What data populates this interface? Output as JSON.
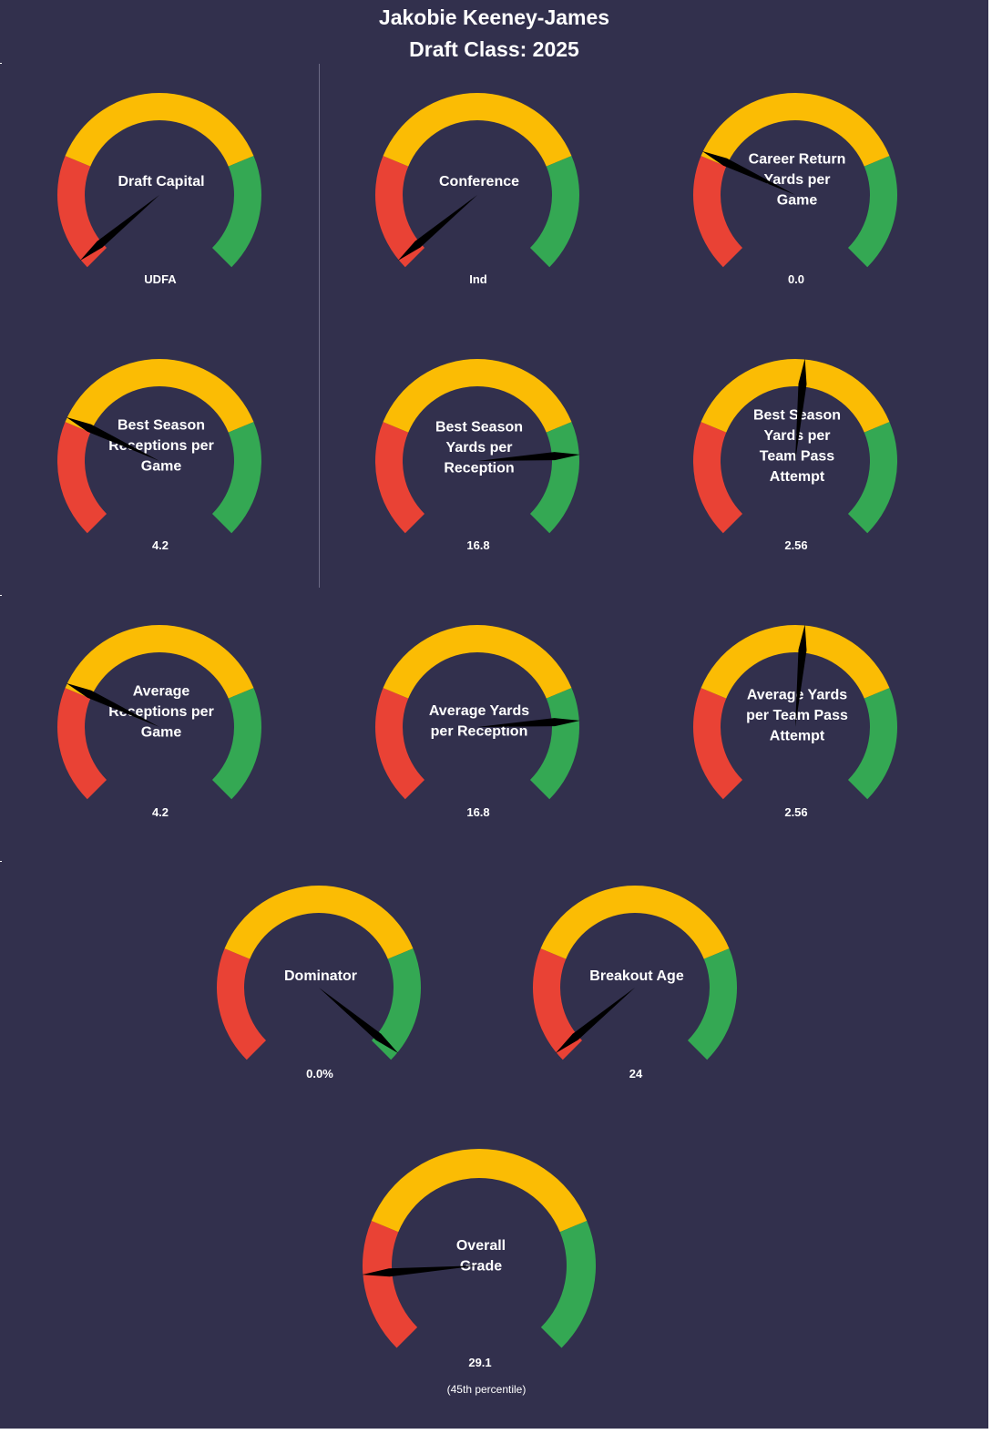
{
  "header": {
    "title_line1": "Jakobie Keeney-James",
    "title_line2": "Draft Class: 2025"
  },
  "colors": {
    "background": "#32304d",
    "low": "#e94235",
    "mid": "#fbbc04",
    "high": "#34a853",
    "needle": "#000000",
    "text": "#ffffff"
  },
  "chart_data": {
    "type": "gauge",
    "gauges": [
      {
        "label": "Draft Capital",
        "value_text": "UDFA",
        "needle_pct": 2
      },
      {
        "label": "Conference",
        "value_text": "Ind",
        "needle_pct": 2
      },
      {
        "label": "Career Return Yards per Game",
        "value_text": "0.0",
        "needle_pct": 26
      },
      {
        "label": "Best Season Receptions per Game",
        "value_text": "4.2",
        "needle_pct": 26
      },
      {
        "label": "Best Season Yards per Reception",
        "value_text": "16.8",
        "needle_pct": 82
      },
      {
        "label": "Best Season Yards per Team Pass Attempt",
        "value_text": "2.56",
        "needle_pct": 52
      },
      {
        "label": "Average Receptions per Game",
        "value_text": "4.2",
        "needle_pct": 26
      },
      {
        "label": "Average Yards per Reception",
        "value_text": "16.8",
        "needle_pct": 82
      },
      {
        "label": "Average Yards per Team Pass Attempt",
        "value_text": "2.56",
        "needle_pct": 52
      },
      {
        "label": "Dominator",
        "value_text": "0.0%",
        "needle_pct": 98
      },
      {
        "label": "Breakout Age",
        "value_text": "24",
        "needle_pct": 2
      },
      {
        "label": "Overall Grade",
        "value_text": "29.1",
        "needle_pct": 15
      }
    ],
    "overall_note": "(45th  percentile)",
    "band_split_pct": [
      25,
      75
    ]
  }
}
